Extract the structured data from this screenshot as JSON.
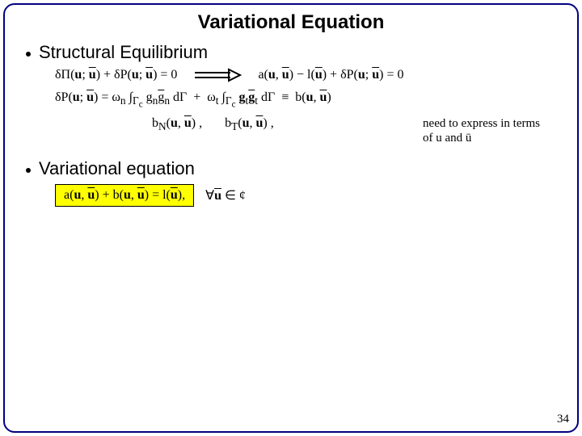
{
  "title": "Variational Equation",
  "title_fontsize": 24,
  "bullet1": "Structural Equilibrium",
  "bullet2": "Variational equation",
  "bullet_fontsize": 22,
  "eq_left": "δΠ(u; ū) + δP(u; ū) = 0",
  "eq_right": "a(u, ū) − l(ū) + δP(u; ū) = 0",
  "eq_deltap_html": "δP(<b>u</b>; <b><span class='ol'>u</span></b>) = ω<sub>n</sub> ∫<sub>Γ<sub>c</sub></sub> g<sub>n</sub><span class='ol'>g</span><sub>n</sub> dΓ &nbsp;+&nbsp; ω<sub>t</sub> ∫<sub>Γ<sub>c</sub></sub> <b>g</b><sub>t</sub><b><span class='ol'>g</span></b><sub>t</sub> dΓ &nbsp;≡&nbsp; b(<b>u</b>, <b><span class='ol'>u</span></b>)",
  "sub_forms_html": "b<sub>N</sub>(<b>u</b>, <b><span class='ol'>u</span></b>) , &nbsp;&nbsp;&nbsp;&nbsp;&nbsp; b<sub>T</sub>(<b>u</b>, <b><span class='ol'>u</span></b>) ,",
  "note_line1": "need to express in terms",
  "note_line2": "of u and ū",
  "note_fontsize": 15,
  "box_eq_html": "a(<b>u</b>, <b><span class='ol'>u</span></b>) + b(<b>u</b>, <b><span class='ol'>u</span></b>) = l(<b><span class='ol'>u</span></b>),",
  "box_cond_html": "∀<b><span class='ol'>u</span></b> ∈ ¢",
  "eq_fontsize": 16,
  "page_number": "34",
  "page_number_fontsize": 15,
  "colors": {
    "frame_border": "#000080",
    "highlight_bg": "#ffff00",
    "text": "#000000",
    "background": "#ffffff"
  }
}
